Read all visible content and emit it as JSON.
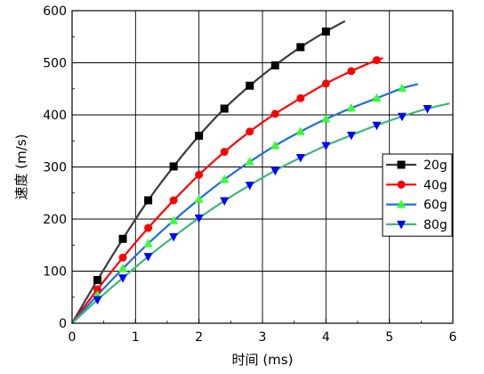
{
  "chart_data": {
    "type": "line",
    "title": "",
    "xlabel": "时间 (ms)",
    "ylabel": "速度 (m/s)",
    "xlim": [
      0,
      6
    ],
    "ylim": [
      0,
      600
    ],
    "xticks": [
      "0",
      "1",
      "2",
      "3",
      "4",
      "5",
      "6"
    ],
    "yticks": [
      "0",
      "100",
      "200",
      "300",
      "400",
      "500",
      "600"
    ],
    "grid": true,
    "legend_position": "right",
    "series": [
      {
        "name": "20g",
        "color": "#3c3c3c",
        "marker": "square",
        "marker_color": "#000000",
        "curve_end": 4.3,
        "x": [
          0,
          0.4,
          0.8,
          1.2,
          1.6,
          2.0,
          2.4,
          2.8,
          3.2,
          3.6,
          4.0
        ],
        "values": [
          0,
          83,
          162,
          236,
          301,
          360,
          412,
          456,
          495,
          530,
          560
        ],
        "curve_end_value": 580
      },
      {
        "name": "40g",
        "color": "#ff0000",
        "marker": "circle",
        "marker_color": "#ff0000",
        "curve_end": 4.9,
        "x": [
          0,
          0.4,
          0.8,
          1.2,
          1.6,
          2.0,
          2.4,
          2.8,
          3.2,
          3.6,
          4.0,
          4.4,
          4.8
        ],
        "values": [
          0,
          65,
          126,
          183,
          236,
          285,
          329,
          368,
          402,
          432,
          460,
          484,
          505
        ],
        "curve_end_value": 509
      },
      {
        "name": "60g",
        "color": "#1f6fd6",
        "marker": "triangle-up",
        "marker_color": "#33ff33",
        "curve_end": 5.45,
        "x": [
          0,
          0.4,
          0.8,
          1.2,
          1.6,
          2.0,
          2.4,
          2.8,
          3.2,
          3.6,
          4.0,
          4.4,
          4.8,
          5.2
        ],
        "values": [
          0,
          54,
          105,
          153,
          197,
          238,
          276,
          310,
          341,
          368,
          392,
          413,
          432,
          451
        ],
        "curve_end_value": 459
      },
      {
        "name": "80g",
        "color": "#3cb878",
        "marker": "triangle-down",
        "marker_color": "#0000ff",
        "curve_end": 5.95,
        "x": [
          0,
          0.4,
          0.8,
          1.2,
          1.6,
          2.0,
          2.4,
          2.8,
          3.2,
          3.6,
          4.0,
          4.4,
          4.8,
          5.2,
          5.6
        ],
        "values": [
          0,
          45,
          87,
          128,
          166,
          202,
          235,
          265,
          293,
          318,
          341,
          361,
          380,
          397,
          412
        ],
        "curve_end_value": 422
      }
    ]
  }
}
